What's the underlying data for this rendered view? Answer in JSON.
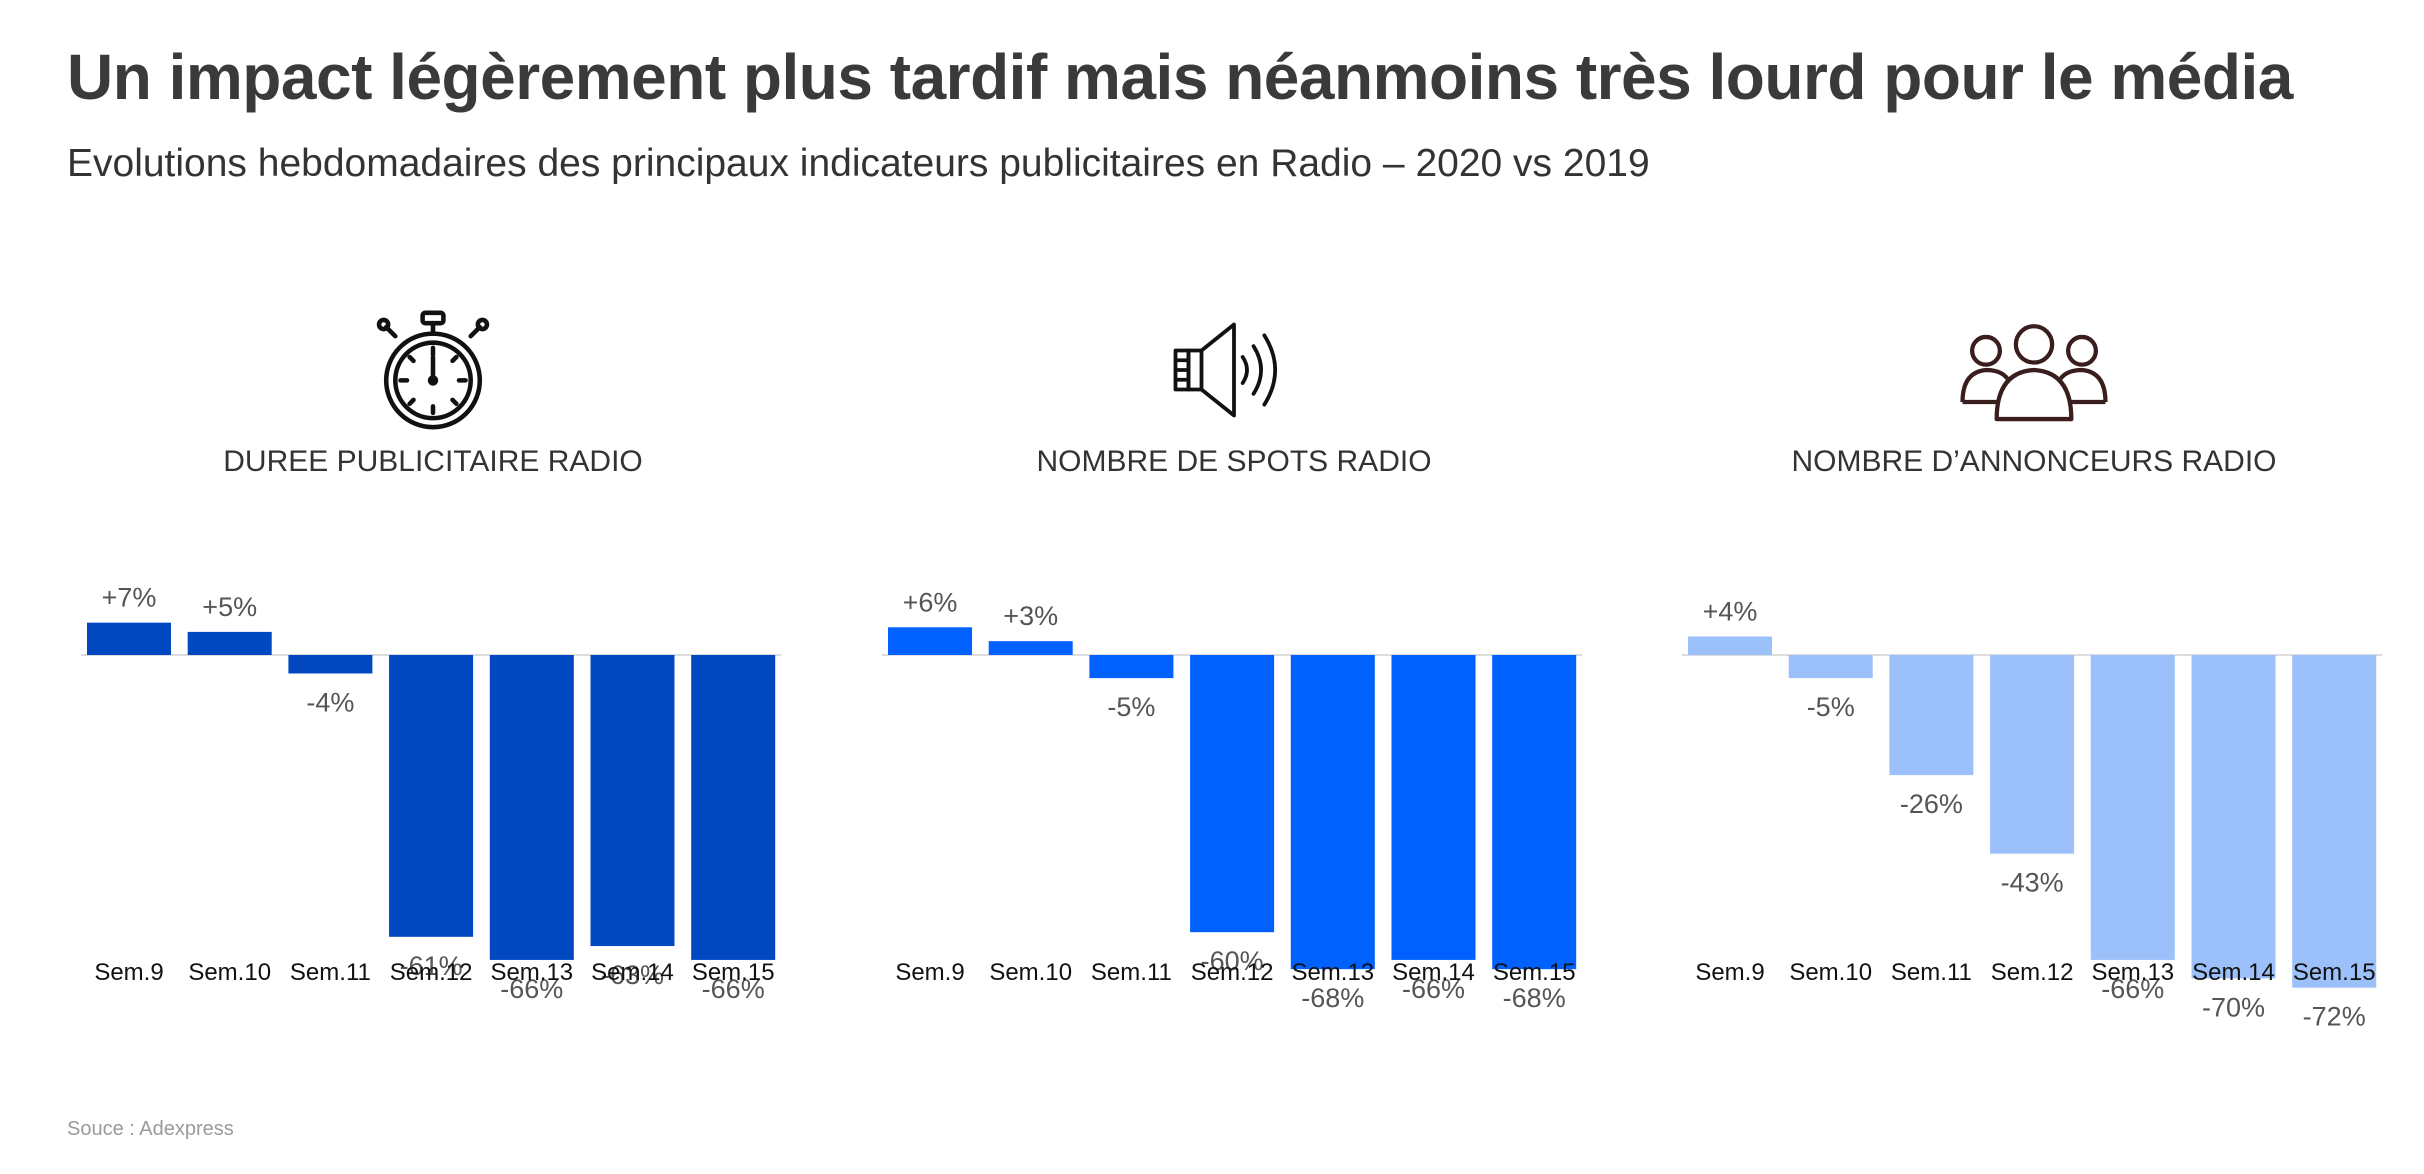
{
  "header": {
    "title": "Un impact légèrement plus tardif mais néanmoins très lourd pour le média",
    "subtitle": "Evolutions hebdomadaires des principaux indicateurs publicitaires en Radio – 2020 vs 2019"
  },
  "panels": [
    {
      "icon": "stopwatch-icon",
      "heading": "DUREE PUBLICITAIRE RADIO"
    },
    {
      "icon": "speaker-icon",
      "heading": "NOMBRE DE SPOTS RADIO"
    },
    {
      "icon": "people-group-icon",
      "heading": "NOMBRE D’ANNONCEURS RADIO"
    }
  ],
  "footer": {
    "source": "Souce : Adexpress"
  },
  "chart_data": [
    {
      "type": "bar",
      "title": "DUREE PUBLICITAIRE RADIO",
      "categories": [
        "Sem.9",
        "Sem.10",
        "Sem.11",
        "Sem.12",
        "Sem.13",
        "Sem.14",
        "Sem.15"
      ],
      "values": [
        7,
        5,
        -4,
        -61,
        -66,
        -63,
        -66
      ],
      "value_labels": [
        "+7%",
        "+5%",
        "-4%",
        "-61%",
        "-66%",
        "-63%",
        "-66%"
      ],
      "color": "#0047C0",
      "ylim": [
        -72,
        7
      ],
      "grid": false,
      "legend": "none"
    },
    {
      "type": "bar",
      "title": "NOMBRE DE SPOTS RADIO",
      "categories": [
        "Sem.9",
        "Sem.10",
        "Sem.11",
        "Sem.12",
        "Sem.13",
        "Sem.14",
        "Sem.15"
      ],
      "values": [
        6,
        3,
        -5,
        -60,
        -68,
        -66,
        -68
      ],
      "value_labels": [
        "+6%",
        "+3%",
        "-5%",
        "-60%",
        "-68%",
        "-66%",
        "-68%"
      ],
      "color": "#0061FF",
      "ylim": [
        -72,
        7
      ],
      "grid": false,
      "legend": "none"
    },
    {
      "type": "bar",
      "title": "NOMBRE D’ANNONCEURS RADIO",
      "categories": [
        "Sem.9",
        "Sem.10",
        "Sem.11",
        "Sem.12",
        "Sem.13",
        "Sem.14",
        "Sem.15"
      ],
      "values": [
        4,
        -5,
        -26,
        -43,
        -66,
        -70,
        -72
      ],
      "value_labels": [
        "+4%",
        "-5%",
        "-26%",
        "-43%",
        "-66%",
        "-70%",
        "-72%"
      ],
      "color": "#9CC0FA",
      "ylim": [
        -72,
        7
      ],
      "grid": false,
      "legend": "none"
    }
  ]
}
